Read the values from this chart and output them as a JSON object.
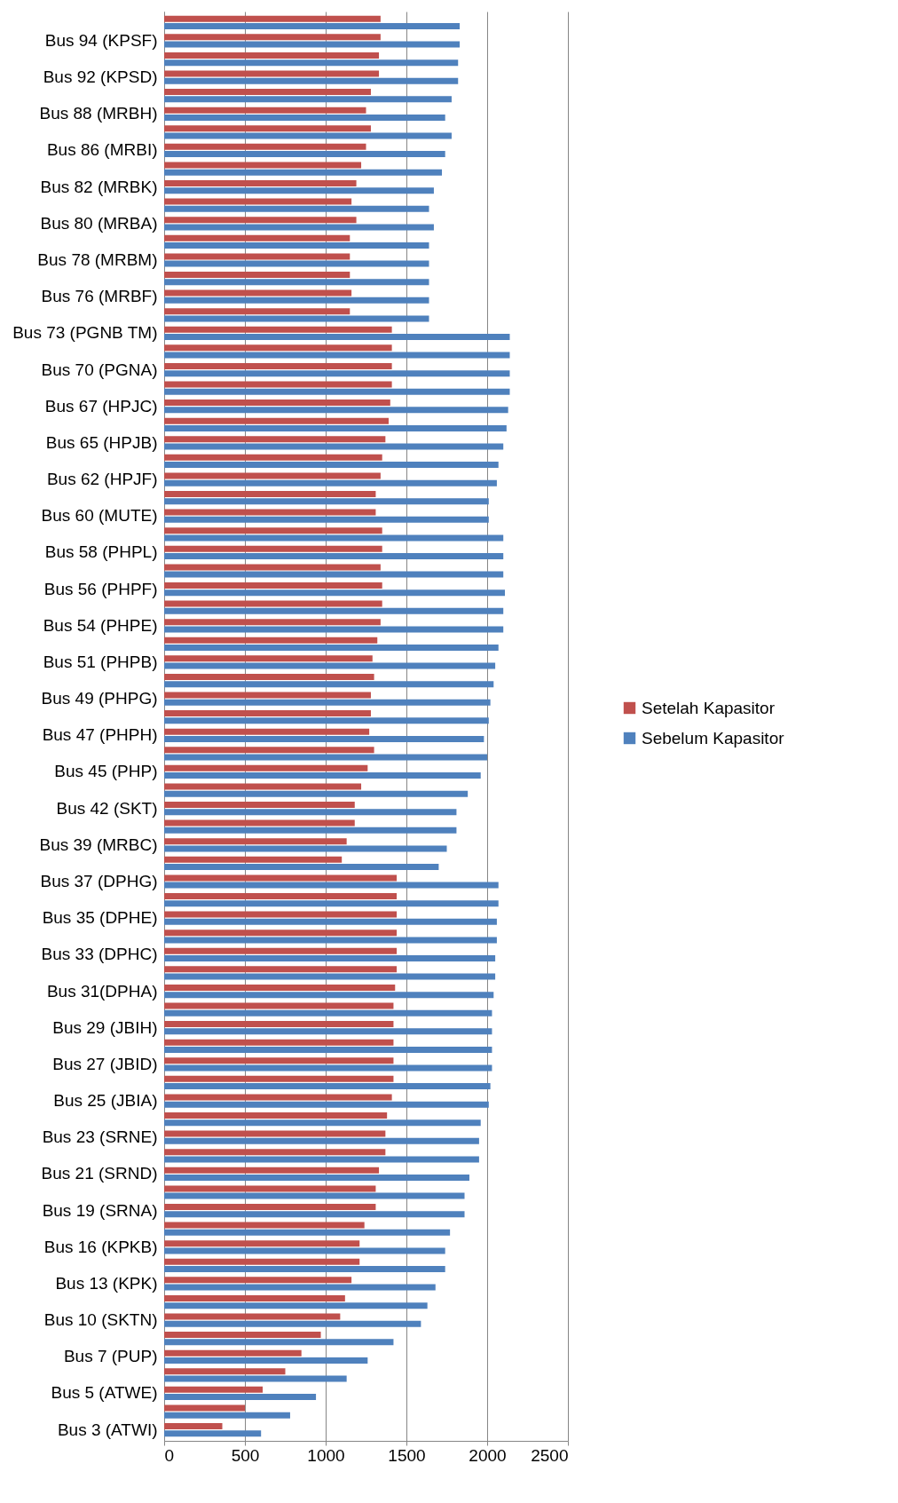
{
  "chart_data": {
    "type": "bar",
    "orientation": "horizontal",
    "categories": [
      null,
      "Bus 94 (KPSF)",
      null,
      "Bus 92 (KPSD)",
      null,
      "Bus 88 (MRBH)",
      null,
      "Bus 86 (MRBI)",
      null,
      "Bus 82 (MRBK)",
      null,
      "Bus 80 (MRBA)",
      null,
      "Bus 78 (MRBM)",
      null,
      "Bus 76 (MRBF)",
      null,
      "Bus 73 (PGNB TM)",
      null,
      "Bus 70 (PGNA)",
      null,
      "Bus 67 (HPJC)",
      null,
      "Bus 65 (HPJB)",
      null,
      "Bus 62 (HPJF)",
      null,
      "Bus 60 (MUTE)",
      null,
      "Bus 58 (PHPL)",
      null,
      "Bus 56 (PHPF)",
      null,
      "Bus 54 (PHPE)",
      null,
      "Bus 51 (PHPB)",
      null,
      "Bus 49 (PHPG)",
      null,
      "Bus 47 (PHPH)",
      null,
      "Bus 45 (PHP)",
      null,
      "Bus 42 (SKT)",
      null,
      "Bus 39 (MRBC)",
      null,
      "Bus 37 (DPHG)",
      null,
      "Bus 35 (DPHE)",
      null,
      "Bus 33 (DPHC)",
      null,
      "Bus 31(DPHA)",
      null,
      "Bus 29 (JBIH)",
      null,
      "Bus 27 (JBID)",
      null,
      "Bus 25 (JBIA)",
      null,
      "Bus 23 (SRNE)",
      null,
      "Bus 21 (SRND)",
      null,
      "Bus 19 (SRNA)",
      null,
      "Bus 16 (KPKB)",
      null,
      "Bus 13 (KPK)",
      null,
      "Bus 10 (SKTN)",
      null,
      "Bus 7 (PUP)",
      null,
      "Bus 5 (ATWE)",
      null,
      "Bus 3 (ATWI)"
    ],
    "series": [
      {
        "name": "Setelah Kapasitor",
        "color": "#c0504d",
        "values": [
          1340,
          1340,
          1330,
          1330,
          1280,
          1250,
          1280,
          1250,
          1220,
          1190,
          1160,
          1190,
          1150,
          1150,
          1150,
          1160,
          1150,
          1410,
          1410,
          1410,
          1410,
          1400,
          1390,
          1370,
          1350,
          1340,
          1310,
          1310,
          1350,
          1350,
          1340,
          1350,
          1350,
          1340,
          1320,
          1290,
          1300,
          1280,
          1280,
          1270,
          1300,
          1260,
          1220,
          1180,
          1180,
          1130,
          1100,
          1440,
          1440,
          1440,
          1440,
          1440,
          1440,
          1430,
          1420,
          1420,
          1420,
          1420,
          1420,
          1410,
          1380,
          1370,
          1370,
          1330,
          1310,
          1310,
          1240,
          1210,
          1210,
          1160,
          1120,
          1090,
          970,
          850,
          750,
          610,
          500,
          360
        ]
      },
      {
        "name": "Sebelum Kapasitor",
        "color": "#4f81bd",
        "values": [
          1830,
          1830,
          1820,
          1820,
          1780,
          1740,
          1780,
          1740,
          1720,
          1670,
          1640,
          1670,
          1640,
          1640,
          1640,
          1640,
          1640,
          2140,
          2140,
          2140,
          2140,
          2130,
          2120,
          2100,
          2070,
          2060,
          2010,
          2010,
          2100,
          2100,
          2100,
          2110,
          2100,
          2100,
          2070,
          2050,
          2040,
          2020,
          2010,
          1980,
          2000,
          1960,
          1880,
          1810,
          1810,
          1750,
          1700,
          2070,
          2070,
          2060,
          2060,
          2050,
          2050,
          2040,
          2030,
          2030,
          2030,
          2030,
          2020,
          2010,
          1960,
          1950,
          1950,
          1890,
          1860,
          1860,
          1770,
          1740,
          1740,
          1680,
          1630,
          1590,
          1420,
          1260,
          1130,
          940,
          780,
          600
        ]
      }
    ],
    "xlim": [
      0,
      2500
    ],
    "xticks": [
      0,
      500,
      1000,
      1500,
      2000,
      2500
    ],
    "grid": "x",
    "legend": "right"
  }
}
